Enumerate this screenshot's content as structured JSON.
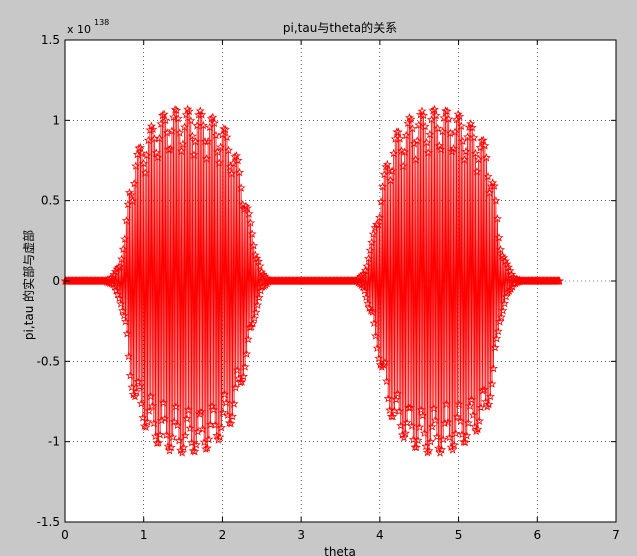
{
  "chart_data": {
    "type": "line",
    "title": "pi,tau与theta的关系",
    "xlabel": "theta",
    "ylabel": "pi,tau 的实部与虚部",
    "exponent_base": "x 10",
    "exponent_power": "138",
    "xlim": [
      0,
      7
    ],
    "ylim": [
      -1.5,
      1.5
    ],
    "xticks": [
      "0",
      "1",
      "2",
      "3",
      "4",
      "5",
      "6",
      "7"
    ],
    "yticks": [
      "-1.5",
      "-1",
      "-0.5",
      "0",
      "0.5",
      "1",
      "1.5"
    ],
    "grid": true,
    "line_color": "#ff0000",
    "marker": "star",
    "series": [
      {
        "name": "",
        "x_start": 0,
        "x_end": 6.2832,
        "n_points": 630,
        "envelope": [
          [
            0.0,
            0.0
          ],
          [
            0.5,
            0.0
          ],
          [
            0.6,
            0.02
          ],
          [
            0.7,
            0.12
          ],
          [
            0.76,
            0.27
          ],
          [
            0.82,
            0.6
          ],
          [
            0.9,
            0.78
          ],
          [
            1.0,
            0.9
          ],
          [
            1.2,
            1.03
          ],
          [
            1.4,
            1.07
          ],
          [
            1.6,
            1.07
          ],
          [
            1.8,
            1.05
          ],
          [
            2.0,
            0.97
          ],
          [
            2.1,
            0.9
          ],
          [
            2.2,
            0.75
          ],
          [
            2.3,
            0.52
          ],
          [
            2.4,
            0.25
          ],
          [
            2.5,
            0.05
          ],
          [
            2.6,
            0.0
          ],
          [
            3.7,
            0.0
          ],
          [
            3.8,
            0.05
          ],
          [
            3.9,
            0.25
          ],
          [
            4.0,
            0.52
          ],
          [
            4.1,
            0.78
          ],
          [
            4.2,
            0.92
          ],
          [
            4.4,
            1.03
          ],
          [
            4.6,
            1.07
          ],
          [
            4.8,
            1.07
          ],
          [
            5.0,
            1.04
          ],
          [
            5.2,
            0.96
          ],
          [
            5.35,
            0.85
          ],
          [
            5.45,
            0.62
          ],
          [
            5.52,
            0.27
          ],
          [
            5.6,
            0.12
          ],
          [
            5.7,
            0.02
          ],
          [
            5.8,
            0.0
          ],
          [
            6.2832,
            0.0
          ]
        ]
      }
    ]
  }
}
